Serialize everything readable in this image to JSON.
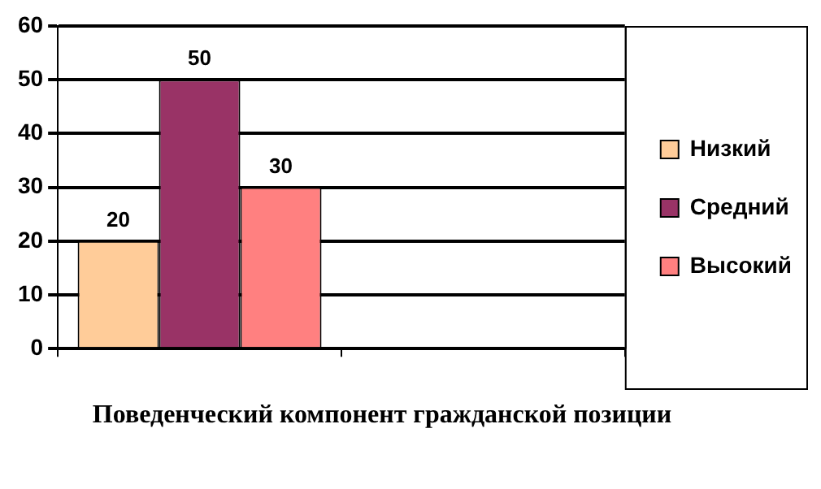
{
  "chart_data": {
    "type": "bar",
    "xlabel": "Поведенческий компонент гражданской позиции",
    "categories": [
      null,
      null
    ],
    "series": [
      {
        "name": "Низкий",
        "color": "#ffcc99",
        "values": [
          20,
          null
        ]
      },
      {
        "name": "Средний",
        "color": "#993366",
        "values": [
          50,
          null
        ]
      },
      {
        "name": "Высокий",
        "color": "#ff8080",
        "values": [
          30,
          null
        ]
      }
    ],
    "ylim": [
      0,
      60
    ],
    "yticks": [
      0,
      10,
      20,
      30,
      40,
      50,
      60
    ],
    "grid": "y",
    "legend": "right",
    "data_labels": true
  }
}
